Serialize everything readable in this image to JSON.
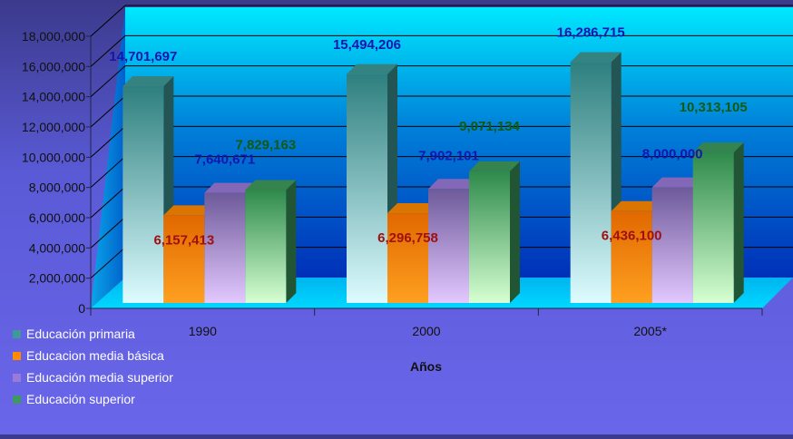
{
  "chart_data": {
    "type": "bar",
    "categories": [
      "1990",
      "2000",
      "2005*"
    ],
    "series": [
      {
        "name": "Educación primaria",
        "values": [
          14701697,
          15494206,
          16286715
        ],
        "labels": [
          "14,701,697",
          "15,494,206",
          "16,286,715"
        ],
        "color": "#3d9a98",
        "label_color": "#1515b0"
      },
      {
        "name": "Educacion media básica",
        "values": [
          6157413,
          6296758,
          6436100
        ],
        "labels": [
          "6,157,413",
          "6,296,758",
          "6,436,100"
        ],
        "color": "#ff8a00",
        "label_color": "#a01010"
      },
      {
        "name": "Educación media superior",
        "values": [
          7640671,
          7902101,
          8000000
        ],
        "labels": [
          "7,640,671",
          "7,902,101",
          "8,000,000"
        ],
        "color": "#9a7ad8",
        "label_color": "#1515b0"
      },
      {
        "name": "Educación superior",
        "values": [
          7829163,
          9071134,
          10313105
        ],
        "labels": [
          "7,829,163",
          "9,071,134",
          "10,313,105"
        ],
        "color": "#3e9a5c",
        "label_color": "#125a12"
      }
    ],
    "xlabel": "Años",
    "ylabel": "",
    "ylim": [
      0,
      18000000
    ],
    "yticks": [
      0,
      2000000,
      4000000,
      6000000,
      8000000,
      10000000,
      12000000,
      14000000,
      16000000,
      18000000
    ],
    "ytick_labels": [
      "0",
      "2,000,000",
      "4,000,000",
      "6,000,000",
      "8,000,000",
      "10,000,000",
      "12,000,000",
      "14,000,000",
      "16,000,000",
      "18,000,000"
    ],
    "grid": true,
    "legend_position": "bottom-left",
    "style": "3d-column"
  }
}
